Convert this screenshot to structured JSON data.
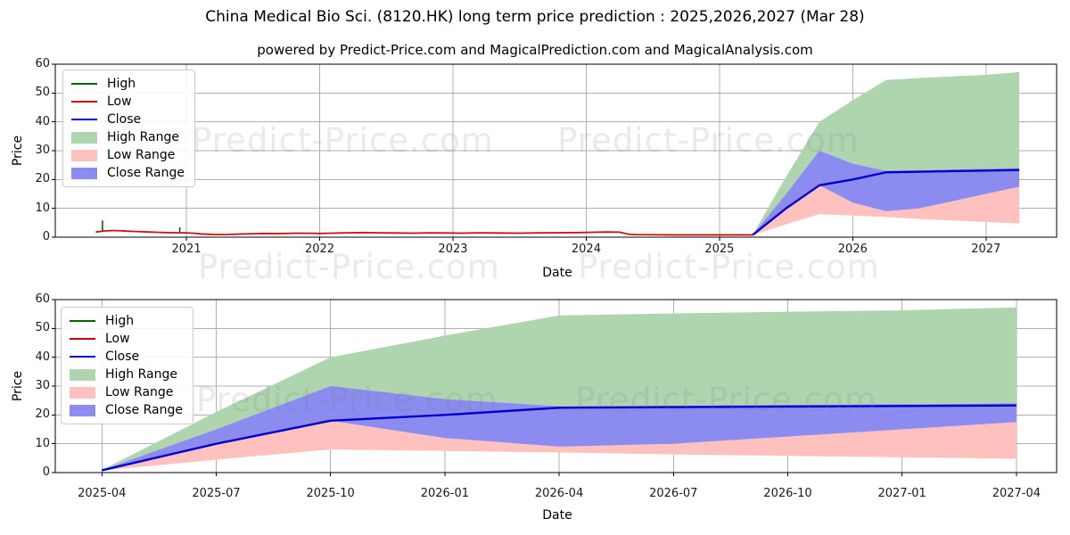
{
  "header": {
    "title": "China Medical Bio Sci. (8120.HK) long term price prediction : 2025,2026,2027 (Mar 28)",
    "subtitle": "powered by Predict-Price.com and MagicalPrediction.com and MagicalAnalysis.com"
  },
  "watermark": {
    "text": "Predict-Price.com"
  },
  "colors": {
    "high_line": "#006400",
    "low_line": "#cc1111",
    "close_line": "#0000cd",
    "high_range": "#aed5ae",
    "low_range": "#ffc1be",
    "close_range": "#8b8bf0",
    "grid": "#b0b0b0",
    "spine": "#000000"
  },
  "legend": [
    {
      "label": "High",
      "swatch": "line",
      "color": "#006400"
    },
    {
      "label": "Low",
      "swatch": "line",
      "color": "#cc0000"
    },
    {
      "label": "Close",
      "swatch": "line",
      "color": "#0000cd"
    },
    {
      "label": "High Range",
      "swatch": "patch",
      "color": "#aed5ae"
    },
    {
      "label": "Low Range",
      "swatch": "patch",
      "color": "#ffc1be"
    },
    {
      "label": "Close Range",
      "swatch": "patch",
      "color": "#8b8bf0"
    }
  ],
  "chart_data": [
    {
      "type": "area",
      "xlabel": "Date",
      "ylabel": "Price",
      "ylim": [
        0,
        60
      ],
      "yticks": [
        0,
        10,
        20,
        30,
        40,
        50,
        60
      ],
      "xtick_labels": [
        "2021",
        "2022",
        "2023",
        "2024",
        "2025",
        "2026",
        "2027"
      ],
      "xtick_positions": [
        2021,
        2022,
        2023,
        2024,
        2025,
        2026,
        2027
      ],
      "xrange": [
        2020.016,
        2027.53
      ],
      "grid": true,
      "legend_position": "upper-left",
      "history": {
        "x": [
          2020.32,
          2020.36,
          2020.4,
          2020.45,
          2020.5,
          2020.55,
          2020.6,
          2020.66,
          2020.72,
          2020.78,
          2020.84,
          2020.9,
          2020.96,
          2021.0,
          2021.06,
          2021.12,
          2021.2,
          2021.28,
          2021.35,
          2021.42,
          2021.5,
          2021.58,
          2021.66,
          2021.75,
          2021.83,
          2021.92,
          2022.0,
          2022.1,
          2022.2,
          2022.33,
          2022.45,
          2022.58,
          2022.7,
          2022.83,
          2022.95,
          2023.05,
          2023.2,
          2023.35,
          2023.5,
          2023.65,
          2023.8,
          2023.95,
          2024.05,
          2024.15,
          2024.25,
          2024.32,
          2024.38,
          2024.5,
          2024.65,
          2024.8,
          2024.95,
          2025.1,
          2025.25
        ],
        "low": [
          1.8,
          2.0,
          2.2,
          2.3,
          2.25,
          2.1,
          2.0,
          1.9,
          1.8,
          1.7,
          1.6,
          1.55,
          1.5,
          1.5,
          1.35,
          1.1,
          0.95,
          0.9,
          1.0,
          1.1,
          1.2,
          1.3,
          1.25,
          1.3,
          1.4,
          1.35,
          1.3,
          1.4,
          1.5,
          1.6,
          1.5,
          1.45,
          1.4,
          1.5,
          1.45,
          1.4,
          1.5,
          1.45,
          1.4,
          1.5,
          1.55,
          1.6,
          1.7,
          1.8,
          1.75,
          1.0,
          0.9,
          0.85,
          0.8,
          0.8,
          0.8,
          0.8,
          0.8
        ],
        "spikes": [
          {
            "x": 2020.37,
            "from": 2.1,
            "to": 5.8
          },
          {
            "x": 2020.95,
            "from": 1.5,
            "to": 3.4
          }
        ]
      },
      "forecast": {
        "x_labels": [
          "2025-04",
          "2025-07",
          "2025-10",
          "2026-01",
          "2026-04",
          "2026-07",
          "2026-10",
          "2027-01",
          "2027-04"
        ],
        "close": [
          0.8,
          10,
          18,
          20,
          22.5,
          22.7,
          22.9,
          23.1,
          23.3
        ],
        "close_range": {
          "top": [
            0.9,
            15,
            30,
            25.5,
            23.0,
            23.2,
            23.5,
            23.7,
            24.0
          ],
          "bottom": [
            0.7,
            10,
            18,
            12,
            9,
            10,
            12.5,
            15,
            17.5
          ]
        },
        "high_range": {
          "top": [
            0.9,
            21,
            40,
            47.5,
            54.5,
            55.2,
            55.8,
            56.3,
            57.3
          ],
          "bottom": [
            0.9,
            15,
            30,
            25.5,
            23.0,
            23.2,
            23.5,
            23.7,
            24.0
          ]
        },
        "low_range": {
          "top": [
            0.8,
            10,
            18,
            12,
            9,
            10,
            12.5,
            15,
            17.5
          ],
          "bottom": [
            0.7,
            4.5,
            8,
            7.5,
            7,
            6.3,
            5.8,
            5.3,
            4.8
          ]
        }
      }
    },
    {
      "type": "area",
      "xlabel": "Date",
      "ylabel": "Price",
      "ylim": [
        0,
        60
      ],
      "yticks": [
        0,
        10,
        20,
        30,
        40,
        50,
        60
      ],
      "xtick_labels": [
        "2025-04",
        "2025-07",
        "2025-10",
        "2026-01",
        "2026-04",
        "2026-07",
        "2026-10",
        "2027-01",
        "2027-04"
      ],
      "xtick_positions": [
        2025.25,
        2025.5,
        2025.75,
        2026.0,
        2026.25,
        2026.5,
        2026.75,
        2027.0,
        2027.25
      ],
      "xrange": [
        2025.148,
        2027.338
      ],
      "grid": true,
      "legend_position": "upper-left",
      "forecast": {
        "x_labels": [
          "2025-04",
          "2025-07",
          "2025-10",
          "2026-01",
          "2026-04",
          "2026-07",
          "2026-10",
          "2027-01",
          "2027-04"
        ],
        "close": [
          0.8,
          10,
          18,
          20,
          22.5,
          22.7,
          22.9,
          23.1,
          23.3
        ],
        "close_range": {
          "top": [
            0.9,
            15,
            30,
            25.5,
            23.0,
            23.2,
            23.5,
            23.7,
            24.0
          ],
          "bottom": [
            0.7,
            10,
            18,
            12,
            9,
            10,
            12.5,
            15,
            17.5
          ]
        },
        "high_range": {
          "top": [
            0.9,
            21,
            40,
            47.5,
            54.5,
            55.2,
            55.8,
            56.3,
            57.3
          ],
          "bottom": [
            0.9,
            15,
            30,
            25.5,
            23.0,
            23.2,
            23.5,
            23.7,
            24.0
          ]
        },
        "low_range": {
          "top": [
            0.8,
            10,
            18,
            12,
            9,
            10,
            12.5,
            15,
            17.5
          ],
          "bottom": [
            0.7,
            4.5,
            8,
            7.5,
            7,
            6.3,
            5.8,
            5.3,
            4.8
          ]
        }
      }
    }
  ]
}
